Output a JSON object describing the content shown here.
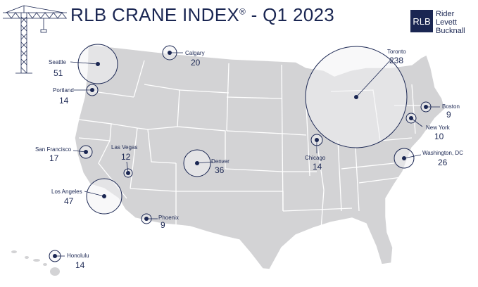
{
  "header": {
    "title": "RLB CRANE INDEX",
    "title_mark": "®",
    "title_period": " - Q1 2023"
  },
  "logo": {
    "abbr": "RLB",
    "line1": "Rider",
    "line2": "Levett",
    "line3": "Bucknall"
  },
  "cities": [
    {
      "name": "Seattle",
      "count": "51"
    },
    {
      "name": "Calgary",
      "count": "20"
    },
    {
      "name": "Portland",
      "count": "14"
    },
    {
      "name": "Toronto",
      "count": "238"
    },
    {
      "name": "Boston",
      "count": "9"
    },
    {
      "name": "New York",
      "count": "10"
    },
    {
      "name": "San Francisco",
      "count": "17"
    },
    {
      "name": "Las Vegas",
      "count": "12"
    },
    {
      "name": "Denver",
      "count": "36"
    },
    {
      "name": "Chicago",
      "count": "14"
    },
    {
      "name": "Washington, DC",
      "count": "26"
    },
    {
      "name": "Los Angeles",
      "count": "47"
    },
    {
      "name": "Phoenix",
      "count": "9"
    },
    {
      "name": "Honolulu",
      "count": "14"
    }
  ],
  "colors": {
    "brand": "#1a2652",
    "land": "#d3d3d5",
    "state_border": "#ffffff",
    "bubble_fill": "#f2f2f4",
    "bubble_stroke": "#1a2652"
  },
  "icons": {
    "crane": "crane-icon",
    "marker": "city-marker-icon"
  }
}
